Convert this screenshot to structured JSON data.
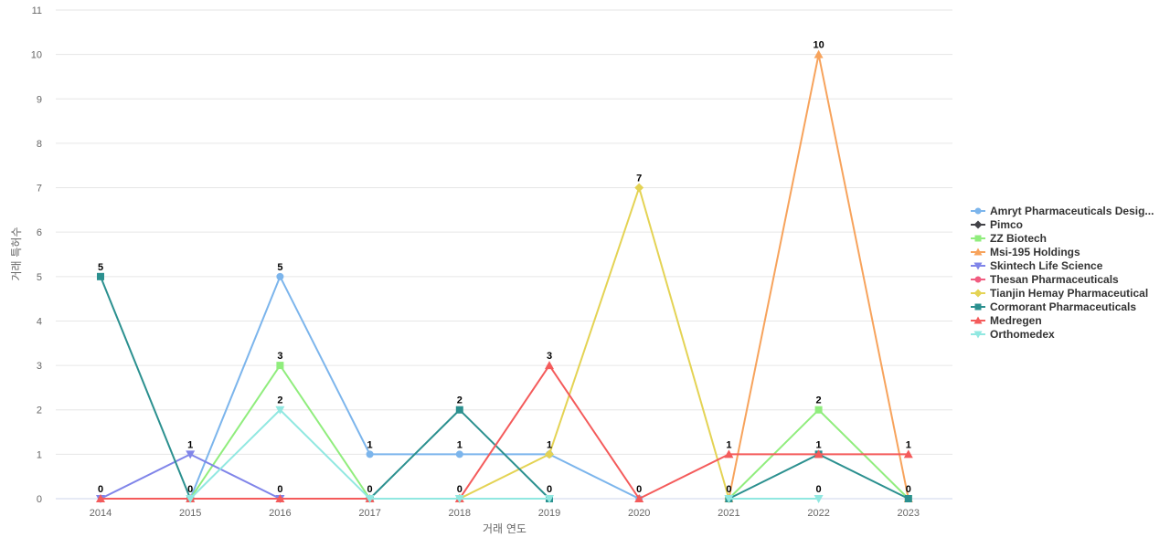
{
  "chart_data": {
    "type": "line",
    "xlabel": "거래 연도",
    "ylabel": "거래 특허수",
    "ylim": [
      0,
      11
    ],
    "yticks": [
      0,
      1,
      2,
      3,
      4,
      5,
      6,
      7,
      8,
      9,
      10,
      11
    ],
    "grid": true,
    "legend_position": "right",
    "categories": [
      "2014",
      "2015",
      "2016",
      "2017",
      "2018",
      "2019",
      "2020",
      "2021",
      "2022",
      "2023"
    ],
    "series": [
      {
        "name": "Amryt Pharmaceuticals Desig...",
        "color": "#7cb5ec",
        "marker": "circle",
        "values": [
          null,
          0,
          5,
          1,
          1,
          1,
          0,
          null,
          null,
          null
        ],
        "labels": [
          false,
          false,
          true,
          true,
          true,
          false,
          false,
          false,
          false,
          false
        ]
      },
      {
        "name": "Pimco",
        "color": "#434348",
        "marker": "diamond",
        "values": [
          null,
          null,
          null,
          null,
          null,
          null,
          null,
          null,
          null,
          null
        ],
        "labels": [
          false,
          false,
          false,
          false,
          false,
          false,
          false,
          false,
          false,
          false
        ]
      },
      {
        "name": "ZZ Biotech",
        "color": "#90ed7d",
        "marker": "square",
        "values": [
          null,
          0,
          3,
          0,
          null,
          null,
          null,
          0,
          2,
          0
        ],
        "labels": [
          false,
          false,
          true,
          false,
          false,
          false,
          false,
          false,
          true,
          false
        ]
      },
      {
        "name": "Msi-195 Holdings",
        "color": "#f7a35c",
        "marker": "triangle",
        "values": [
          null,
          null,
          null,
          null,
          null,
          null,
          null,
          0,
          10,
          0
        ],
        "labels": [
          false,
          false,
          false,
          false,
          false,
          false,
          false,
          false,
          true,
          false
        ]
      },
      {
        "name": "Skintech Life Science",
        "color": "#8085e9",
        "marker": "triangle-down",
        "values": [
          0,
          1,
          0,
          null,
          null,
          null,
          null,
          null,
          null,
          null
        ],
        "labels": [
          false,
          true,
          false,
          false,
          false,
          false,
          false,
          false,
          false,
          false
        ]
      },
      {
        "name": "Thesan Pharmaceuticals",
        "color": "#f15c80",
        "marker": "circle",
        "values": [
          null,
          null,
          null,
          null,
          null,
          null,
          null,
          null,
          null,
          null
        ],
        "labels": [
          false,
          false,
          false,
          false,
          false,
          false,
          false,
          false,
          false,
          false
        ]
      },
      {
        "name": "Tianjin Hemay Pharmaceutical",
        "color": "#e4d354",
        "marker": "diamond",
        "values": [
          null,
          null,
          null,
          null,
          0,
          1,
          7,
          0,
          null,
          null
        ],
        "labels": [
          false,
          false,
          false,
          false,
          false,
          true,
          true,
          false,
          false,
          false
        ]
      },
      {
        "name": "Cormorant Pharmaceuticals",
        "color": "#2b908f",
        "marker": "square",
        "values": [
          5,
          0,
          null,
          0,
          2,
          0,
          null,
          0,
          1,
          0
        ],
        "labels": [
          true,
          false,
          false,
          false,
          true,
          false,
          false,
          true,
          true,
          true
        ]
      },
      {
        "name": "Medregen",
        "color": "#f45b5b",
        "marker": "triangle",
        "values": [
          0,
          0,
          0,
          0,
          0,
          3,
          0,
          1,
          1,
          1
        ],
        "labels": [
          true,
          true,
          true,
          true,
          true,
          true,
          true,
          true,
          false,
          true
        ]
      },
      {
        "name": "Orthomedex",
        "color": "#91e8e1",
        "marker": "triangle-down",
        "values": [
          null,
          0,
          2,
          0,
          0,
          0,
          null,
          0,
          0,
          null
        ],
        "labels": [
          false,
          false,
          true,
          false,
          false,
          true,
          false,
          false,
          true,
          false
        ]
      }
    ]
  }
}
